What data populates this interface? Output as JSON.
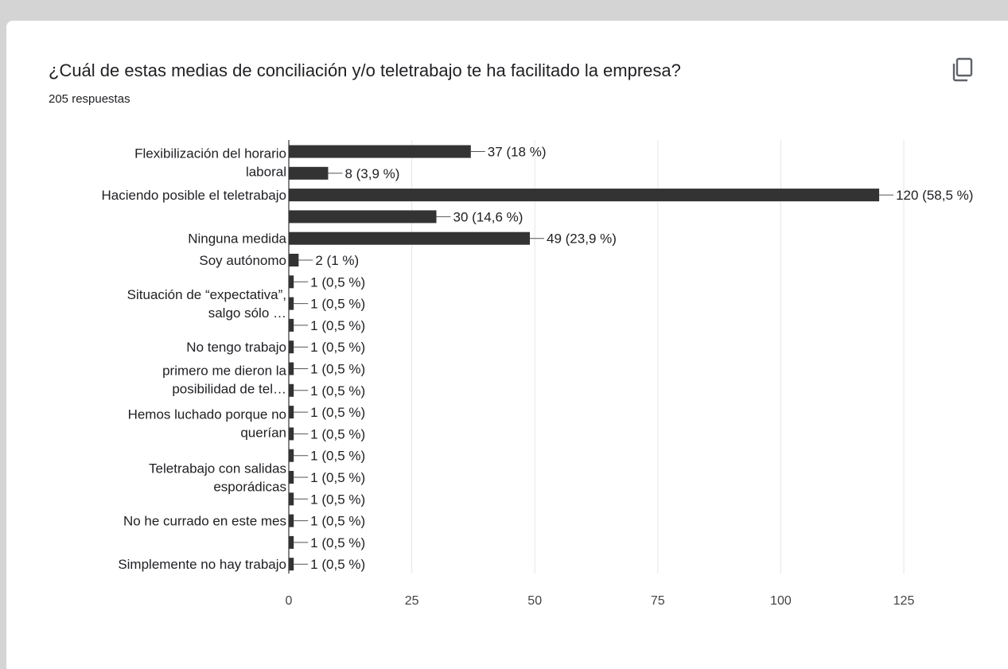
{
  "question": {
    "title": "¿Cuál de estas medias de conciliación y/o teletrabajo te ha facilitado la empresa?",
    "responses": "205 respuestas",
    "copy_icon": "copy-icon"
  },
  "colors": {
    "bar": "#333333",
    "grid": "#e6e6e6",
    "text": "#202124",
    "page_bg": "#d4d4d4",
    "card_bg": "#ffffff"
  },
  "chart_data": {
    "type": "bar",
    "orientation": "horizontal",
    "xlim": [
      0,
      125
    ],
    "xticks": [
      0,
      25,
      50,
      75,
      100,
      125
    ],
    "grid": true,
    "categories": [
      "Flexibilización del horario laboral",
      "",
      "Haciendo posible el teletrabajo",
      "",
      "Ninguna medida",
      "Soy autónomo",
      "Situación de “expectativa”, salgo sólo …",
      "",
      "",
      "No tengo trabajo",
      "primero me dieron la posibilidad de tel…",
      "",
      "Hemos luchado porque no querían",
      "",
      "Teletrabajo con salidas esporádicas",
      "",
      "",
      "No he currado en este mes",
      "",
      "Simplemente no hay trabajo"
    ],
    "values": [
      37,
      8,
      120,
      30,
      49,
      2,
      1,
      1,
      1,
      1,
      1,
      1,
      1,
      1,
      1,
      1,
      1,
      1,
      1,
      1
    ],
    "data_labels": [
      "37 (18 %)",
      "8 (3,9 %)",
      "120 (58,5 %)",
      "30 (14,6 %)",
      "49 (23,9 %)",
      "2 (1 %)",
      "1 (0,5 %)",
      "1 (0,5 %)",
      "1 (0,5 %)",
      "1 (0,5 %)",
      "1 (0,5 %)",
      "1 (0,5 %)",
      "1 (0,5 %)",
      "1 (0,5 %)",
      "1 (0,5 %)",
      "1 (0,5 %)",
      "1 (0,5 %)",
      "1 (0,5 %)",
      "1 (0,5 %)",
      "1 (0,5 %)"
    ],
    "category_labels": [
      {
        "text": [
          "Flexibilización del horario",
          "laboral"
        ],
        "rows": [
          0,
          1
        ]
      },
      {
        "text": [
          "Haciendo posible el teletrabajo"
        ],
        "rows": [
          2,
          2
        ]
      },
      {
        "text": [
          "Ninguna medida"
        ],
        "rows": [
          4,
          4
        ]
      },
      {
        "text": [
          "Soy autónomo"
        ],
        "rows": [
          5,
          5
        ]
      },
      {
        "text": [
          "Situación de “expectativa”,",
          "salgo sólo …"
        ],
        "rows": [
          6,
          8
        ]
      },
      {
        "text": [
          "No tengo trabajo"
        ],
        "rows": [
          9,
          9
        ]
      },
      {
        "text": [
          "primero me dieron la",
          "posibilidad de tel…"
        ],
        "rows": [
          10,
          11
        ]
      },
      {
        "text": [
          "Hemos luchado porque no",
          "querían"
        ],
        "rows": [
          12,
          13
        ]
      },
      {
        "text": [
          "Teletrabajo con salidas",
          "esporádicas"
        ],
        "rows": [
          14,
          16
        ]
      },
      {
        "text": [
          "No he currado en este mes"
        ],
        "rows": [
          17,
          17
        ]
      },
      {
        "text": [
          "Simplemente no hay trabajo"
        ],
        "rows": [
          19,
          19
        ]
      }
    ]
  }
}
